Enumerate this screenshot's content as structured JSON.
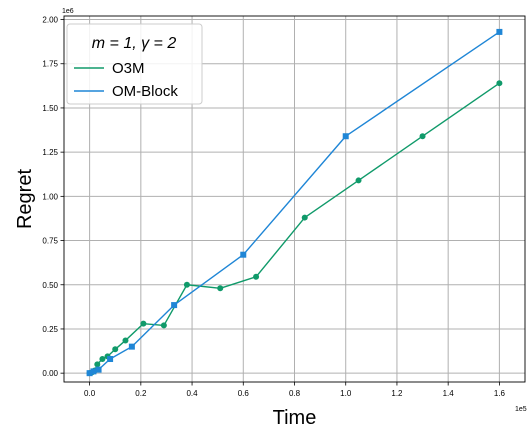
{
  "chart_data": {
    "type": "line",
    "xlabel": "Time",
    "ylabel": "Regret",
    "x_offset_label": "1e5",
    "y_offset_label": "1e6",
    "xlim": [
      -0.1,
      1.7
    ],
    "ylim": [
      -0.05,
      2.02
    ],
    "x_ticks": [
      0.0,
      0.2,
      0.4,
      0.6,
      0.8,
      1.0,
      1.2,
      1.4,
      1.6
    ],
    "x_tick_labels": [
      "0.0",
      "0.2",
      "0.4",
      "0.6",
      "0.8",
      "1.0",
      "1.2",
      "1.4",
      "1.6"
    ],
    "y_ticks": [
      0.0,
      0.25,
      0.5,
      0.75,
      1.0,
      1.25,
      1.5,
      1.75,
      2.0
    ],
    "y_tick_labels": [
      "0.00",
      "0.25",
      "0.50",
      "0.75",
      "1.00",
      "1.25",
      "1.50",
      "1.75",
      "2.00"
    ],
    "grid": true,
    "legend": {
      "title": "m = 1, γ = 2",
      "placement": "upper-left"
    },
    "series": [
      {
        "name": "O3M",
        "color": "#109a6a",
        "marker": "circle",
        "x": [
          0.0,
          0.01,
          0.02,
          0.03,
          0.05,
          0.07,
          0.1,
          0.14,
          0.21,
          0.29,
          0.38,
          0.51,
          0.65,
          0.84,
          1.05,
          1.3,
          1.6
        ],
        "y": [
          0.0,
          0.005,
          0.015,
          0.05,
          0.08,
          0.095,
          0.135,
          0.185,
          0.28,
          0.27,
          0.5,
          0.48,
          0.545,
          0.88,
          1.09,
          1.34,
          1.64
        ]
      },
      {
        "name": "OM-Block",
        "color": "#1f86d6",
        "marker": "square",
        "x": [
          0.0,
          0.015,
          0.035,
          0.08,
          0.165,
          0.33,
          0.6,
          1.0,
          1.6
        ],
        "y": [
          0.0,
          0.01,
          0.02,
          0.08,
          0.15,
          0.385,
          0.67,
          1.34,
          1.93
        ]
      }
    ]
  }
}
